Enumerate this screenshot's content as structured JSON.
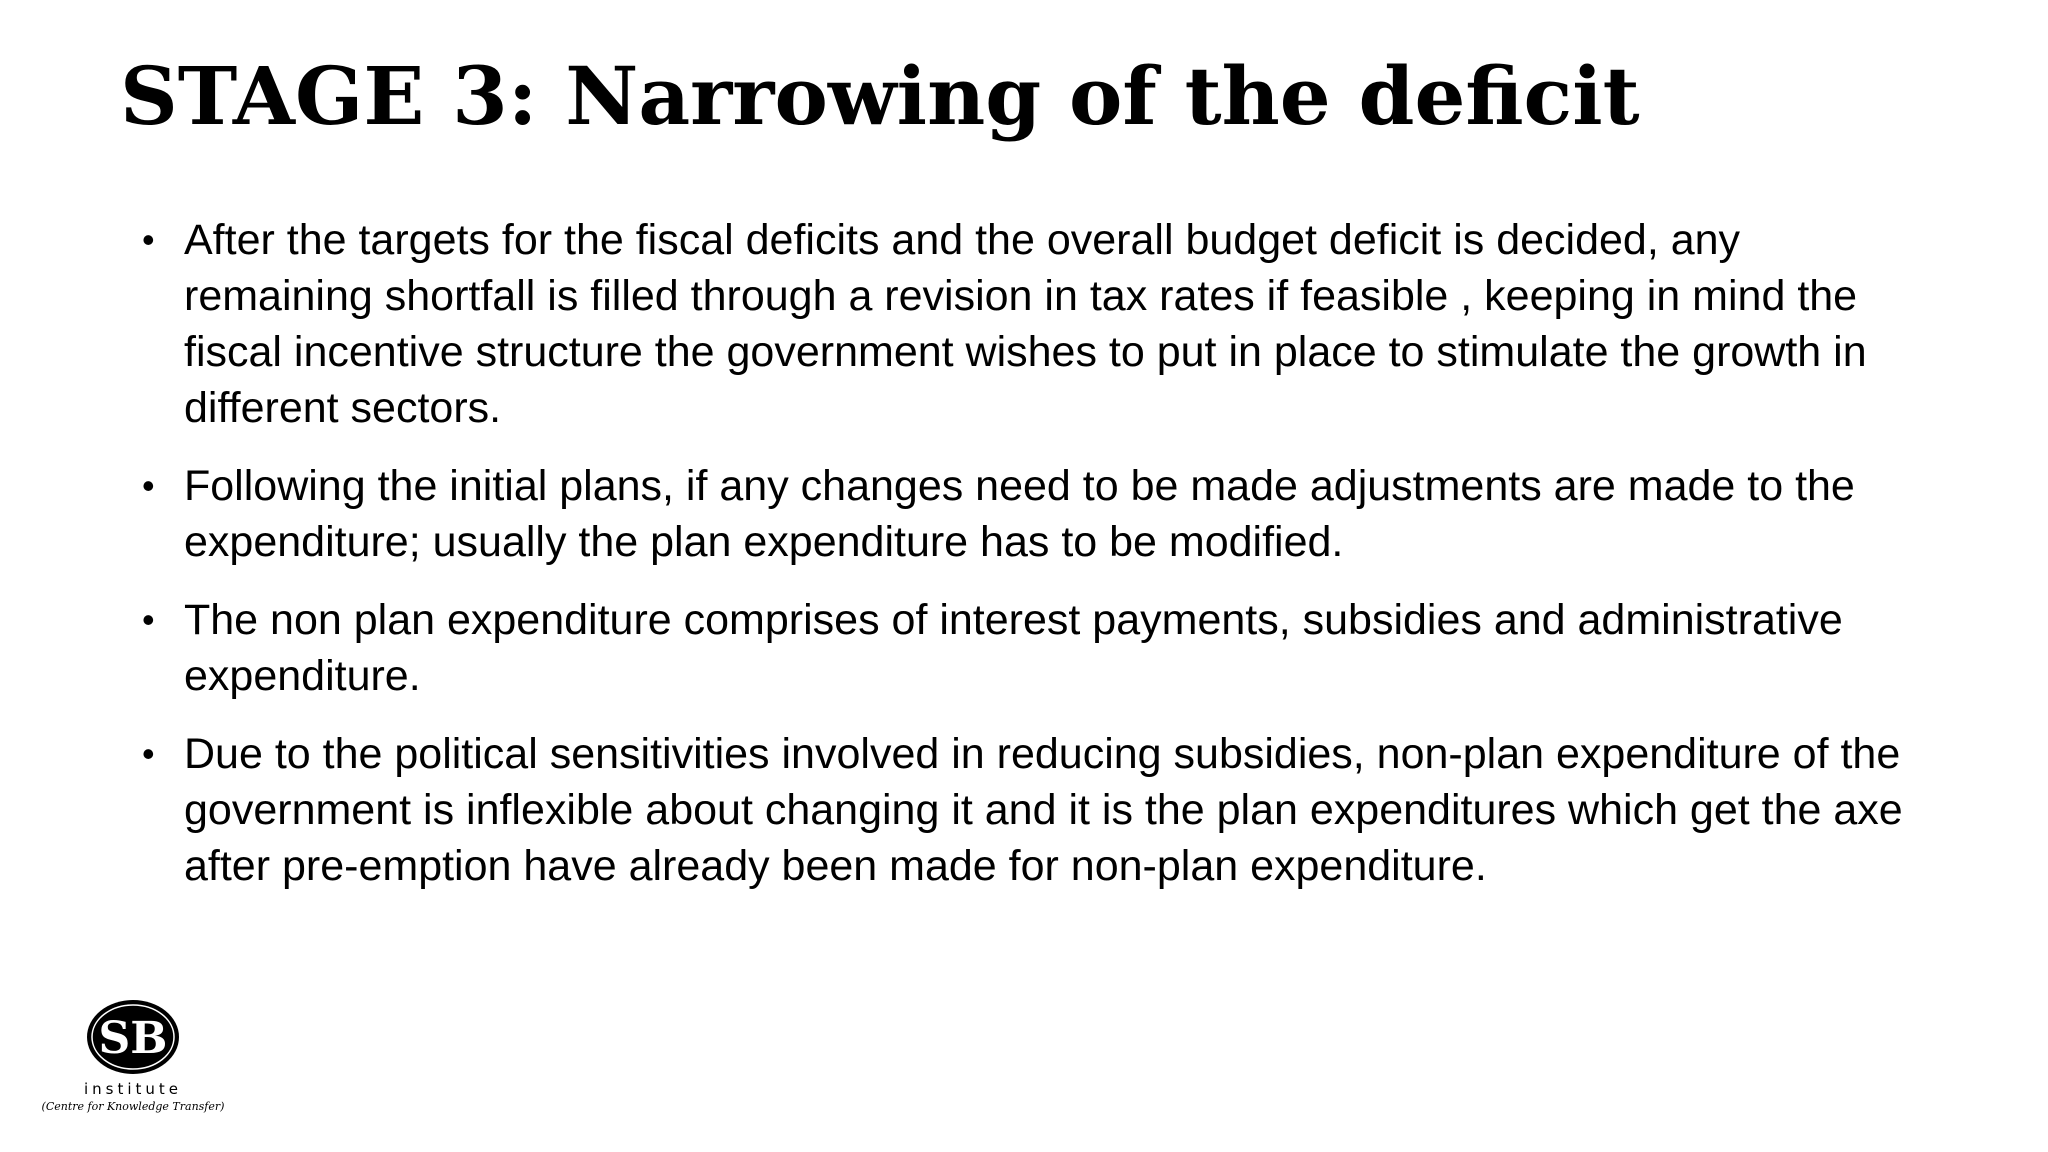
{
  "slide": {
    "title": "STAGE 3: Narrowing of the deficit",
    "bullet_symbol": "•",
    "bullets": [
      "After the targets for the fiscal deficits and the overall budget deficit is  decided, any remaining shortfall is filled through a revision in tax rates if feasible , keeping in mind the  fiscal incentive structure the government wishes to put in place to stimulate the growth in different sectors.",
      "Following the initial plans, if any changes need to be made adjustments are made to the expenditure; usually the plan expenditure has to be modified.",
      "The non plan expenditure comprises of interest payments, subsidies and administrative expenditure.",
      "Due to the political sensitivities involved in reducing subsidies, non-plan expenditure of the government is inflexible about changing it and it is the plan expenditures which get the axe after pre-emption have already been made for non-plan expenditure."
    ]
  },
  "logo": {
    "mark": "SB",
    "word": "institute",
    "tagline": "(Centre for Knowledge Transfer)"
  }
}
